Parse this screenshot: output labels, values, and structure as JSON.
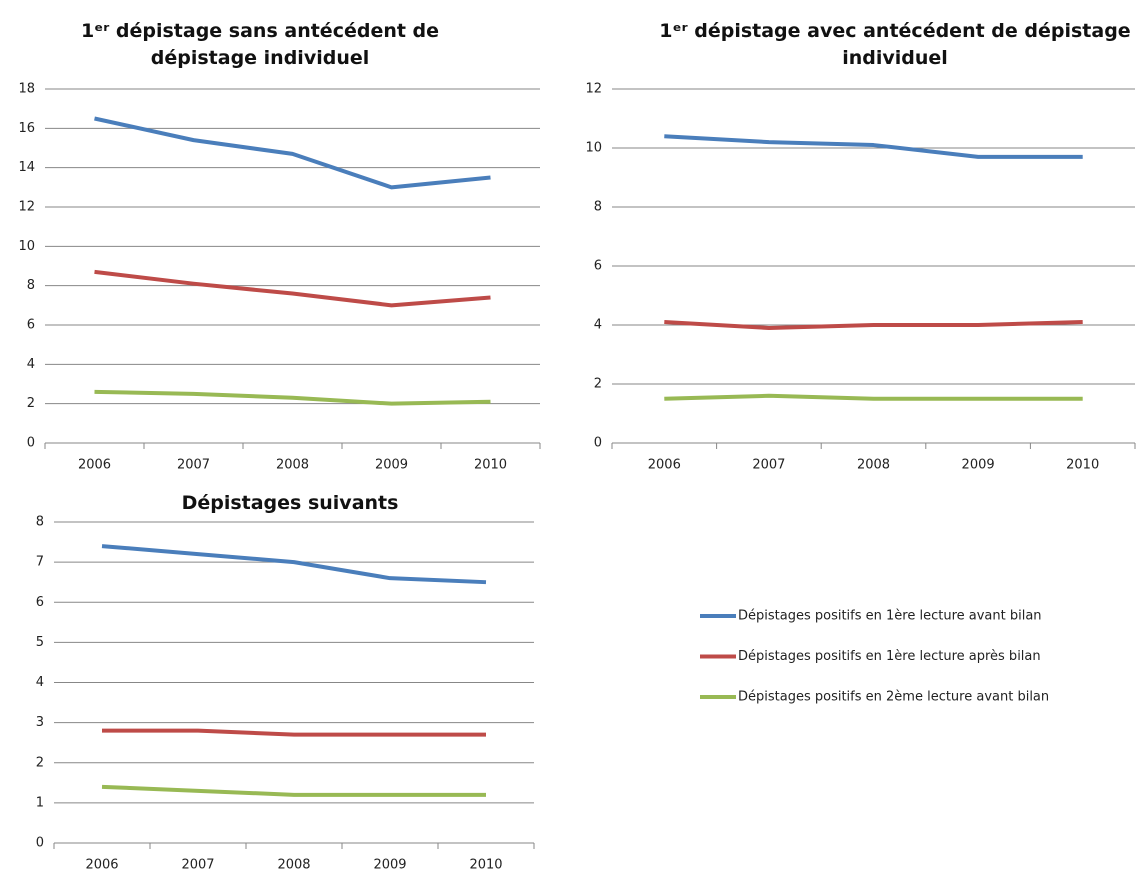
{
  "chart_data": [
    {
      "type": "line",
      "title": "1ᵉʳ dépistage sans antécédent de dépistage individuel",
      "categories": [
        "2006",
        "2007",
        "2008",
        "2009",
        "2010"
      ],
      "series": [
        {
          "name": "Dépistages positifs en 1ère lecture avant bilan",
          "color": "#4a7ebb",
          "values": [
            16.5,
            15.4,
            14.7,
            13.0,
            13.5
          ]
        },
        {
          "name": "Dépistages positifs en 1ère lecture après bilan",
          "color": "#be4b48",
          "values": [
            8.7,
            8.1,
            7.6,
            7.0,
            7.4
          ]
        },
        {
          "name": "Dépistages positifs en 2ème lecture avant bilan",
          "color": "#98b954",
          "values": [
            2.6,
            2.5,
            2.3,
            2.0,
            2.1
          ]
        }
      ],
      "ylim": [
        0,
        18
      ],
      "yticks": [
        0,
        2,
        4,
        6,
        8,
        10,
        12,
        14,
        16,
        18
      ],
      "grid": true
    },
    {
      "type": "line",
      "title": "1ᵉʳ dépistage avec antécédent de dépistage individuel",
      "categories": [
        "2006",
        "2007",
        "2008",
        "2009",
        "2010"
      ],
      "series": [
        {
          "color": "#4a7ebb",
          "values": [
            10.4,
            10.2,
            10.1,
            9.7,
            9.7
          ]
        },
        {
          "color": "#be4b48",
          "values": [
            4.1,
            3.9,
            4.0,
            4.0,
            4.1
          ]
        },
        {
          "color": "#98b954",
          "values": [
            1.5,
            1.6,
            1.5,
            1.5,
            1.5
          ]
        }
      ],
      "ylim": [
        0,
        12
      ],
      "yticks": [
        0,
        2,
        4,
        6,
        8,
        10,
        12
      ],
      "grid": true
    },
    {
      "type": "line",
      "title": "Dépistages suivants",
      "categories": [
        "2006",
        "2007",
        "2008",
        "2009",
        "2010"
      ],
      "series": [
        {
          "color": "#4a7ebb",
          "values": [
            7.4,
            7.2,
            7.0,
            6.6,
            6.5
          ]
        },
        {
          "color": "#be4b48",
          "values": [
            2.8,
            2.8,
            2.7,
            2.7,
            2.7
          ]
        },
        {
          "color": "#98b954",
          "values": [
            1.4,
            1.3,
            1.2,
            1.2,
            1.2
          ]
        }
      ],
      "ylim": [
        0,
        8
      ],
      "yticks": [
        0,
        1,
        2,
        3,
        4,
        5,
        6,
        7,
        8
      ],
      "grid": true
    }
  ]
}
